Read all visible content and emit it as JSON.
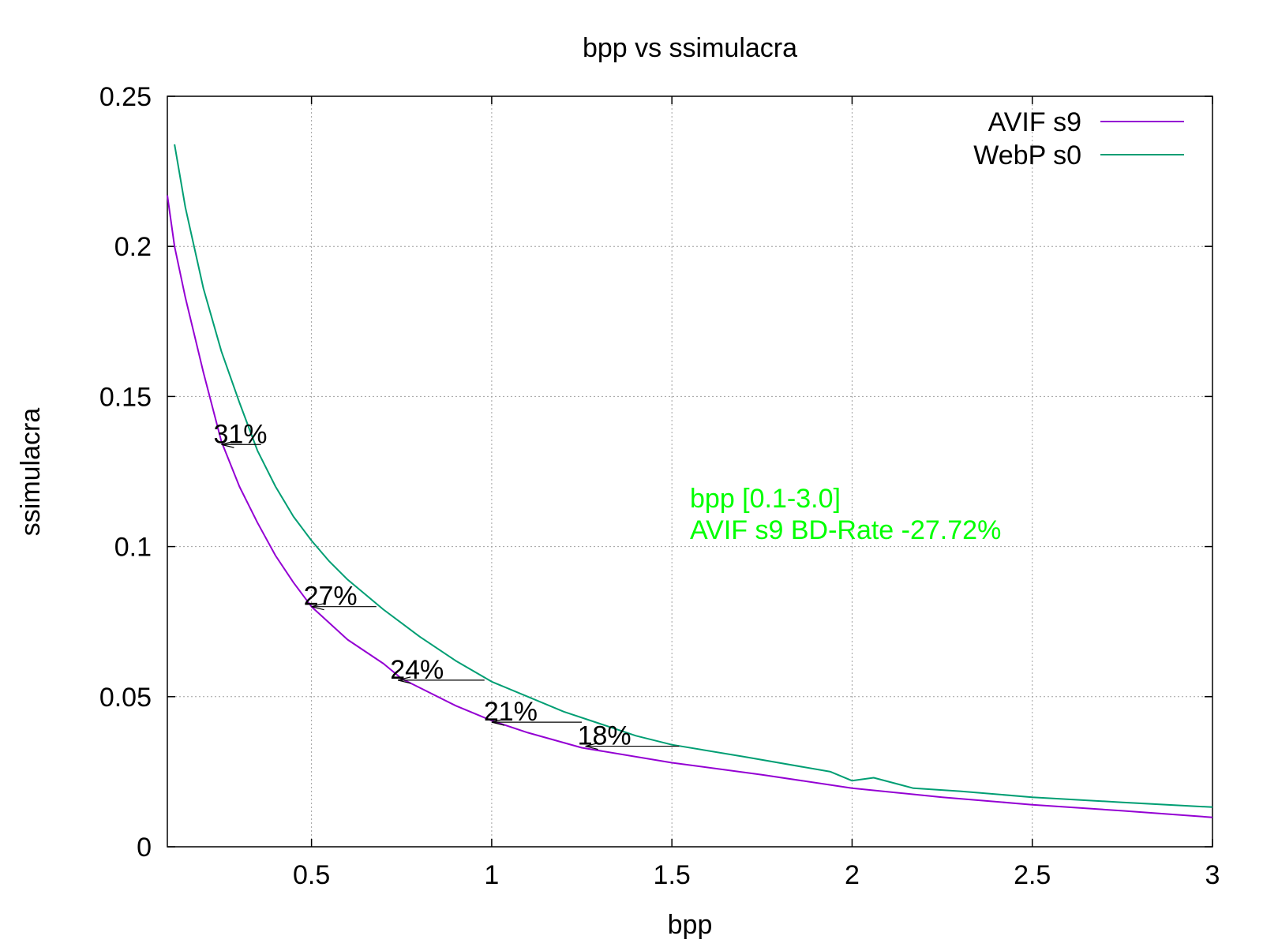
{
  "chart_data": {
    "type": "line",
    "title": "bpp vs ssimulacra",
    "xlabel": "bpp",
    "ylabel": "ssimulacra",
    "xlim": [
      0.1,
      3.0
    ],
    "ylim": [
      0,
      0.25
    ],
    "xticks": [
      0.5,
      1,
      1.5,
      2,
      2.5,
      3
    ],
    "yticks": [
      0,
      0.05,
      0.1,
      0.15,
      0.2,
      0.25
    ],
    "xtick_labels": [
      "0.5",
      "1",
      "1.5",
      "2",
      "2.5",
      "3"
    ],
    "ytick_labels": [
      "0",
      "0.05",
      "0.1",
      "0.15",
      "0.2",
      "0.25"
    ],
    "grid": true,
    "legend_position": "top-right",
    "series": [
      {
        "name": "AVIF s9",
        "color": "#9400d3",
        "points": [
          [
            0.1,
            0.217
          ],
          [
            0.12,
            0.2
          ],
          [
            0.15,
            0.183
          ],
          [
            0.2,
            0.158
          ],
          [
            0.25,
            0.135
          ],
          [
            0.3,
            0.12
          ],
          [
            0.35,
            0.108
          ],
          [
            0.4,
            0.097
          ],
          [
            0.45,
            0.088
          ],
          [
            0.5,
            0.08
          ],
          [
            0.6,
            0.069
          ],
          [
            0.7,
            0.061
          ],
          [
            0.75,
            0.056
          ],
          [
            0.8,
            0.053
          ],
          [
            0.9,
            0.047
          ],
          [
            1.0,
            0.042
          ],
          [
            1.1,
            0.038
          ],
          [
            1.25,
            0.033
          ],
          [
            1.5,
            0.028
          ],
          [
            1.75,
            0.024
          ],
          [
            2.0,
            0.0195
          ],
          [
            2.25,
            0.0165
          ],
          [
            2.5,
            0.014
          ],
          [
            2.75,
            0.012
          ],
          [
            3.0,
            0.0098
          ]
        ]
      },
      {
        "name": "WebP s0",
        "color": "#009e73",
        "points": [
          [
            0.12,
            0.234
          ],
          [
            0.15,
            0.213
          ],
          [
            0.2,
            0.186
          ],
          [
            0.25,
            0.165
          ],
          [
            0.3,
            0.148
          ],
          [
            0.35,
            0.132
          ],
          [
            0.4,
            0.12
          ],
          [
            0.45,
            0.11
          ],
          [
            0.5,
            0.102
          ],
          [
            0.55,
            0.095
          ],
          [
            0.6,
            0.089
          ],
          [
            0.7,
            0.079
          ],
          [
            0.8,
            0.07
          ],
          [
            0.9,
            0.062
          ],
          [
            1.0,
            0.055
          ],
          [
            1.1,
            0.05
          ],
          [
            1.2,
            0.045
          ],
          [
            1.3,
            0.041
          ],
          [
            1.4,
            0.037
          ],
          [
            1.5,
            0.034
          ],
          [
            1.7,
            0.03
          ],
          [
            1.94,
            0.025
          ],
          [
            2.0,
            0.022
          ],
          [
            2.06,
            0.023
          ],
          [
            2.17,
            0.0195
          ],
          [
            2.3,
            0.0185
          ],
          [
            2.5,
            0.0165
          ],
          [
            2.75,
            0.0148
          ],
          [
            3.0,
            0.0132
          ]
        ]
      }
    ],
    "annotations": [
      {
        "text": "31%",
        "x_from": 0.36,
        "x_to": 0.25,
        "y": 0.134
      },
      {
        "text": "27%",
        "x_from": 0.68,
        "x_to": 0.5,
        "y": 0.08
      },
      {
        "text": "24%",
        "x_from": 0.98,
        "x_to": 0.74,
        "y": 0.0555
      },
      {
        "text": "21%",
        "x_from": 1.25,
        "x_to": 1.0,
        "y": 0.0415
      },
      {
        "text": "18%",
        "x_from": 1.52,
        "x_to": 1.26,
        "y": 0.0335
      }
    ],
    "note": {
      "lines": [
        "bpp [0.1-3.0]",
        "AVIF s9 BD-Rate -27.72%"
      ],
      "color": "#00ff00",
      "x": 1.55,
      "y": 0.113
    }
  }
}
